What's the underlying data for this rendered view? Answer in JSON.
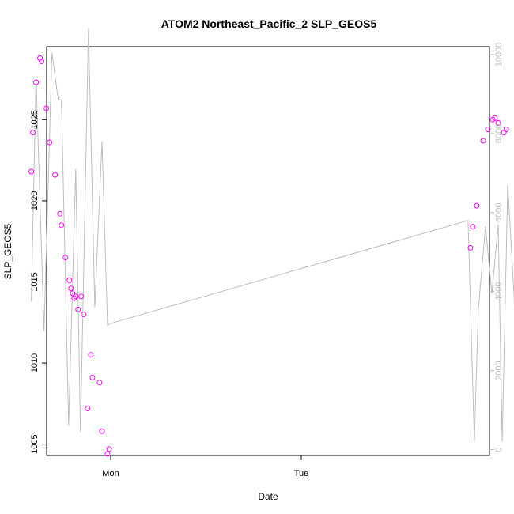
{
  "chart_data": {
    "type": "scatter",
    "title": "ATOM2 Northeast_Pacific_2 SLP_GEOS5",
    "xlabel": "Date",
    "ylabel": "SLP_GEOS5",
    "x_ticks": [
      "Mon",
      "Tue"
    ],
    "y_left": {
      "ylim": [
        1004.3,
        1029.5
      ],
      "ticks": [
        1005,
        1010,
        1015,
        1020,
        1025
      ]
    },
    "y_right": {
      "ylim": [
        -150,
        10200
      ],
      "ticks": [
        0,
        2000,
        4000,
        6000,
        8000,
        10000
      ]
    },
    "grid": false,
    "legend": "none",
    "colors": {
      "points": "#ff00ff",
      "line": "#bdbdbd",
      "axes": "#000000",
      "right_axis": "#bdbdbd"
    },
    "series": [
      {
        "type": "scatter",
        "axis": "left",
        "x_unit": "hours since Sun 00:00",
        "points": [
          [
            14.0,
            1021.8
          ],
          [
            14.2,
            1024.2
          ],
          [
            14.6,
            1027.3
          ],
          [
            15.1,
            1028.8
          ],
          [
            15.3,
            1028.6
          ],
          [
            15.9,
            1025.7
          ],
          [
            16.3,
            1023.6
          ],
          [
            17.0,
            1021.6
          ],
          [
            17.6,
            1019.2
          ],
          [
            17.8,
            1018.5
          ],
          [
            18.3,
            1016.5
          ],
          [
            18.8,
            1015.1
          ],
          [
            19.0,
            1014.6
          ],
          [
            19.2,
            1014.3
          ],
          [
            19.4,
            1014.0
          ],
          [
            19.6,
            1014.1
          ],
          [
            19.9,
            1013.3
          ],
          [
            20.3,
            1014.1
          ],
          [
            20.6,
            1013.0
          ],
          [
            21.1,
            1007.2
          ],
          [
            21.5,
            1010.5
          ],
          [
            21.7,
            1009.1
          ],
          [
            22.6,
            1008.8
          ],
          [
            22.9,
            1005.8
          ],
          [
            23.6,
            1004.4
          ],
          [
            23.8,
            1004.7
          ],
          [
            69.3,
            1017.1
          ],
          [
            69.6,
            1018.4
          ],
          [
            70.1,
            1019.7
          ],
          [
            70.9,
            1023.7
          ],
          [
            71.5,
            1024.4
          ],
          [
            72.1,
            1025.0
          ],
          [
            72.4,
            1025.1
          ],
          [
            72.8,
            1024.8
          ],
          [
            73.5,
            1024.2
          ],
          [
            73.8,
            1024.4
          ]
        ]
      },
      {
        "type": "line",
        "axis": "right",
        "x_unit": "hours since Sun 00:00",
        "points": [
          [
            14.0,
            3750
          ],
          [
            14.6,
            9450
          ],
          [
            15.6,
            3000
          ],
          [
            16.6,
            10050
          ],
          [
            17.4,
            8850
          ],
          [
            17.8,
            8850
          ],
          [
            18.7,
            600
          ],
          [
            19.6,
            7100
          ],
          [
            20.2,
            450
          ],
          [
            21.2,
            10650
          ],
          [
            22.0,
            3600
          ],
          [
            22.9,
            7800
          ],
          [
            23.6,
            3150
          ],
          [
            24.1,
            3200
          ],
          [
            69.0,
            5800
          ],
          [
            69.8,
            200
          ],
          [
            70.3,
            3550
          ],
          [
            71.2,
            5650
          ],
          [
            72.0,
            3950
          ],
          [
            72.8,
            5700
          ],
          [
            73.3,
            200
          ],
          [
            74.0,
            6700
          ],
          [
            74.8,
            3900
          ],
          [
            75.3,
            200
          ]
        ]
      }
    ]
  }
}
